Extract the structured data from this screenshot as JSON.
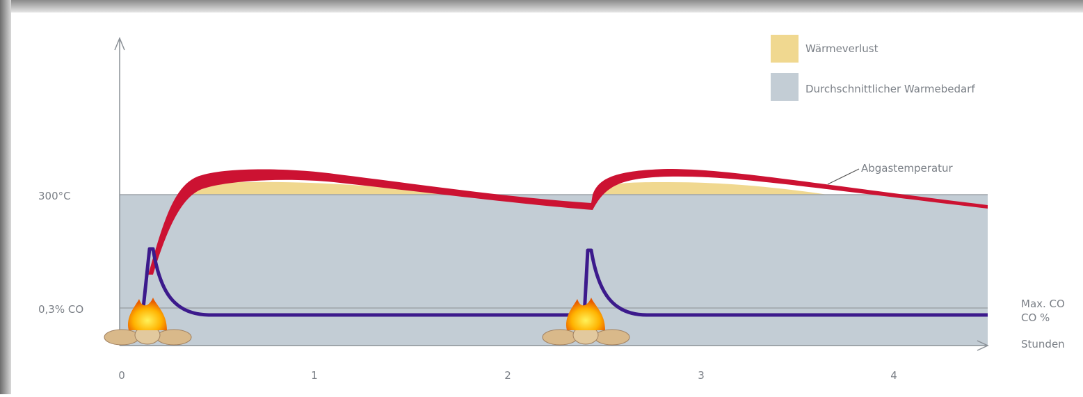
{
  "legend": {
    "items": [
      {
        "label": "Wärmeverlust"
      },
      {
        "label": "Durchschnittlicher Warmebedarf"
      }
    ]
  },
  "y_labels": [
    "300°C",
    "0,3% CO"
  ],
  "x_ticks": [
    "0",
    "1",
    "2",
    "3",
    "4"
  ],
  "annotations": {
    "exhaust": "Abgastemperatur",
    "max_co": "Max. CO",
    "co": "CO %",
    "hours": "Stunden"
  }
}
